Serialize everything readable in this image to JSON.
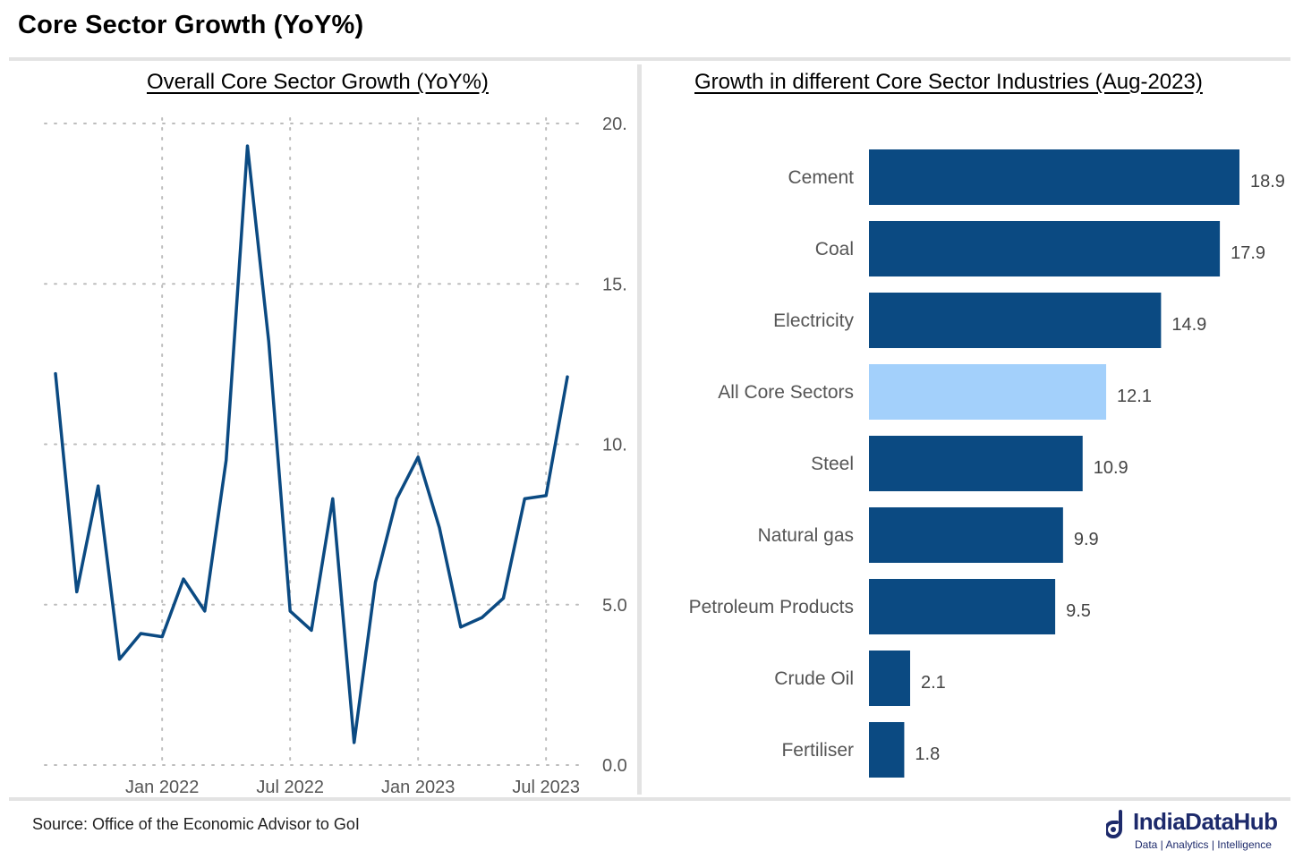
{
  "title": "Core Sector Growth (YoY%)",
  "source": "Source: Office of the Economic Advisor to GoI",
  "logo": {
    "name": "IndiaDataHub",
    "tagline": "Data | Analytics | Intelligence"
  },
  "colors": {
    "line": "#0b4a82",
    "bar": "#0b4a82",
    "highlight": "#a3d0fb"
  },
  "chart_data": [
    {
      "type": "line",
      "title": "Overall Core Sector Growth (YoY%)",
      "x": [
        "2021-08",
        "2021-09",
        "2021-10",
        "2021-11",
        "2021-12",
        "2022-01",
        "2022-02",
        "2022-03",
        "2022-04",
        "2022-05",
        "2022-06",
        "2022-07",
        "2022-08",
        "2022-09",
        "2022-10",
        "2022-11",
        "2022-12",
        "2023-01",
        "2023-02",
        "2023-03",
        "2023-04",
        "2023-05",
        "2023-06",
        "2023-07",
        "2023-08"
      ],
      "series": [
        {
          "values": [
            12.2,
            5.4,
            8.7,
            3.3,
            4.1,
            4.0,
            5.8,
            4.8,
            9.5,
            19.3,
            13.2,
            4.8,
            4.2,
            8.3,
            0.7,
            5.7,
            8.3,
            9.6,
            7.4,
            4.3,
            4.6,
            5.2,
            8.3,
            8.4,
            12.1
          ]
        }
      ],
      "x_ticks": [
        "Jan 2022",
        "Jul 2022",
        "Jan 2023",
        "Jul 2023"
      ],
      "y_tick_labels": [
        "0.0",
        "5.0",
        "10.",
        "15.",
        "20."
      ],
      "ylim": [
        0,
        20
      ],
      "y_axis_position": "right",
      "grid": true
    },
    {
      "type": "bar",
      "orientation": "horizontal",
      "title": "Growth in different Core Sector Industries (Aug-2023)",
      "categories": [
        "Cement",
        "Coal",
        "Electricity",
        "All Core Sectors",
        "Steel",
        "Natural gas",
        "Petroleum Products",
        "Crude Oil",
        "Fertiliser"
      ],
      "values": [
        18.9,
        17.9,
        14.9,
        12.1,
        10.9,
        9.9,
        9.5,
        2.1,
        1.8
      ],
      "value_labels": [
        "18.9",
        "17.9",
        "14.9",
        "12.1",
        "10.9",
        "9.9",
        "9.5",
        "2.1",
        "1.8"
      ],
      "highlight": "All Core Sectors"
    }
  ]
}
